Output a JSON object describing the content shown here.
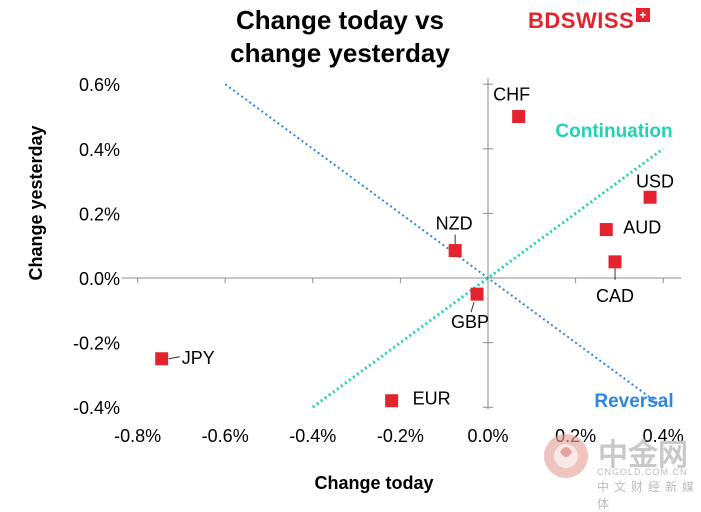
{
  "title_line1": "Change today vs",
  "title_line2": "change yesterday",
  "logo": {
    "text": "BDSWISS",
    "flag_glyph": "+"
  },
  "watermark": {
    "cn": "中金网",
    "domain": "CNGOLD.COM.CN",
    "cn_sub": "中文财经新媒体"
  },
  "chart_data": {
    "type": "scatter",
    "xlabel": "Change today",
    "ylabel": "Change yesterday",
    "xlim": [
      -0.8,
      0.45
    ],
    "ylim": [
      -0.4,
      0.6
    ],
    "x_ticks": [
      -0.8,
      -0.6,
      -0.4,
      -0.2,
      0.0,
      0.2,
      0.4
    ],
    "x_tick_labels": [
      "-0.8%",
      "-0.6%",
      "-0.4%",
      "-0.2%",
      "0.0%",
      "0.2%",
      "0.4%"
    ],
    "y_ticks": [
      -0.4,
      -0.2,
      0.0,
      0.2,
      0.4,
      0.6
    ],
    "y_tick_labels": [
      "-0.4%",
      "-0.2%",
      "0.0%",
      "0.2%",
      "0.4%",
      "0.6%"
    ],
    "grid": false,
    "marker_color": "#e3232d",
    "points": [
      {
        "label": "CHF",
        "x": 0.07,
        "y": 0.5
      },
      {
        "label": "USD",
        "x": 0.37,
        "y": 0.25
      },
      {
        "label": "AUD",
        "x": 0.27,
        "y": 0.15
      },
      {
        "label": "CAD",
        "x": 0.29,
        "y": 0.05
      },
      {
        "label": "NZD",
        "x": -0.075,
        "y": 0.085
      },
      {
        "label": "GBP",
        "x": -0.025,
        "y": -0.05
      },
      {
        "label": "JPY",
        "x": -0.745,
        "y": -0.25
      },
      {
        "label": "EUR",
        "x": -0.22,
        "y": -0.38
      }
    ],
    "continuation_line": {
      "label": "Continuation",
      "color": "#1fd3b4",
      "from": [
        -0.4,
        -0.4
      ],
      "to": [
        0.4,
        0.4
      ]
    },
    "reversal_line": {
      "label": "Reversal",
      "color": "#2e86de",
      "from": [
        -0.6,
        0.6
      ],
      "to": [
        0.4,
        -0.4
      ]
    }
  }
}
